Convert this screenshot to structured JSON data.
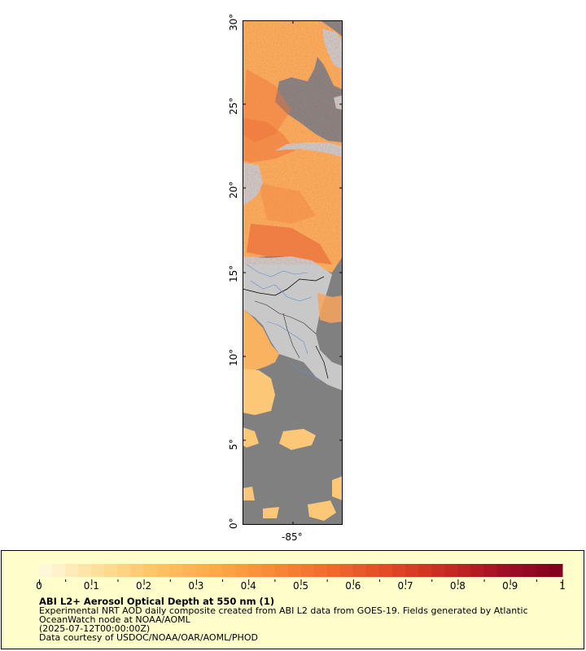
{
  "map": {
    "lat_labels": [
      "30°",
      "25°",
      "20°",
      "15°",
      "10°",
      "5°",
      "0°"
    ],
    "lon_labels": [
      "-85°"
    ],
    "colors": {
      "land": "#c8c8c8",
      "no_data_ocean": "#808080",
      "border": "#000000",
      "rivers": "#6a8fcf"
    }
  },
  "legend": {
    "title": "ABI L2+ Aerosol Optical Depth at 550 nm (1)",
    "line1": "Experimental NRT AOD daily composite created from ABI L2 data from GOES-19. Fields generated by Atlantic",
    "line2": "OceanWatch node at NOAA/AOML",
    "line3": "(2025-07-12T00:00:00Z)",
    "line4": "Data courtesy of USDOC/NOAA/OAR/AOML/PHOD",
    "colorbar_labels": [
      "0",
      "0.1",
      "0.2",
      "0.3",
      "0.4",
      "0.5",
      "0.6",
      "0.7",
      "0.8",
      "0.9",
      "1"
    ],
    "colorbar_range": [
      0,
      1
    ],
    "colorbar_colors": [
      "#fffbe0",
      "#ffdf9a",
      "#fec466",
      "#fda94a",
      "#f98a38",
      "#f26a2e",
      "#e14a26",
      "#c82a22",
      "#a10f26",
      "#80001f"
    ]
  }
}
